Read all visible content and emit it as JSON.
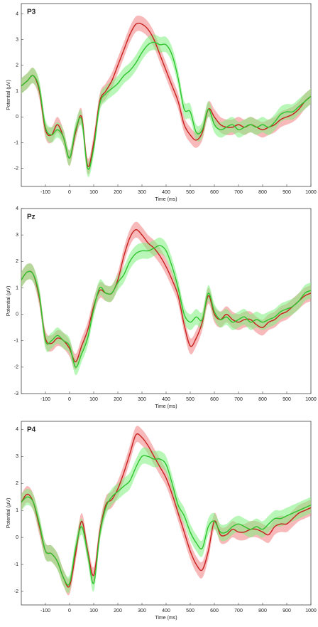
{
  "chart_data": [
    {
      "type": "line",
      "title": "P3",
      "x_label": "Time (ms)",
      "y_label": "Potential (μV)",
      "xlim": [
        -200,
        1000
      ],
      "ylim": [
        -2.7,
        4.4
      ],
      "xticks": [
        -100,
        0,
        100,
        200,
        300,
        400,
        500,
        600,
        700,
        800,
        900,
        1000
      ],
      "yticks": [
        -2,
        -1,
        0,
        1,
        2,
        3,
        4
      ],
      "x": [
        -200,
        -175,
        -150,
        -125,
        -100,
        -75,
        -50,
        -25,
        0,
        25,
        50,
        75,
        100,
        125,
        150,
        175,
        200,
        225,
        250,
        275,
        300,
        325,
        350,
        375,
        400,
        425,
        450,
        475,
        500,
        525,
        550,
        575,
        600,
        625,
        650,
        675,
        700,
        725,
        750,
        775,
        800,
        825,
        850,
        875,
        900,
        925,
        950,
        975,
        1000
      ],
      "series": [
        {
          "color": "#c8201e",
          "band_color": "#f08080",
          "error": 0.3,
          "values": [
            1.2,
            1.4,
            1.6,
            1.0,
            -0.5,
            -0.7,
            -0.3,
            -0.8,
            -1.6,
            -0.6,
            0.0,
            -1.9,
            -1.0,
            0.6,
            1.0,
            1.4,
            2.0,
            2.6,
            3.2,
            3.6,
            3.6,
            3.4,
            3.0,
            2.4,
            1.8,
            1.2,
            0.6,
            -0.3,
            -0.7,
            -0.9,
            -0.6,
            0.3,
            0.0,
            -0.3,
            -0.4,
            -0.4,
            -0.3,
            -0.4,
            -0.3,
            -0.4,
            -0.5,
            -0.4,
            -0.3,
            -0.1,
            0.0,
            0.1,
            0.3,
            0.6,
            0.8
          ]
        },
        {
          "color": "#2ec42e",
          "band_color": "#80f080",
          "error": 0.3,
          "values": [
            1.2,
            1.4,
            1.6,
            1.1,
            -0.4,
            -0.7,
            -0.5,
            -0.8,
            -1.6,
            -0.5,
            -0.1,
            -2.0,
            -1.2,
            0.5,
            0.9,
            1.1,
            1.3,
            1.6,
            1.8,
            2.1,
            2.5,
            2.8,
            2.9,
            2.8,
            2.8,
            2.4,
            1.5,
            0.3,
            0.2,
            -0.6,
            -0.5,
            0.3,
            -0.3,
            -0.5,
            -0.4,
            -0.3,
            -0.5,
            -0.4,
            -0.3,
            -0.4,
            -0.3,
            -0.4,
            -0.2,
            0.1,
            0.2,
            0.2,
            0.4,
            0.6,
            0.8
          ]
        }
      ]
    },
    {
      "type": "line",
      "title": "Pz",
      "x_label": "Time (ms)",
      "y_label": "Potential (μV)",
      "xlim": [
        -200,
        1000
      ],
      "ylim": [
        -3,
        4
      ],
      "xticks": [
        -100,
        0,
        100,
        200,
        300,
        400,
        500,
        600,
        700,
        800,
        900,
        1000
      ],
      "yticks": [
        -3,
        -2,
        -1,
        0,
        1,
        2,
        3,
        4
      ],
      "x": [
        -200,
        -175,
        -150,
        -125,
        -100,
        -75,
        -50,
        -25,
        0,
        25,
        50,
        75,
        100,
        125,
        150,
        175,
        200,
        225,
        250,
        275,
        300,
        325,
        350,
        375,
        400,
        425,
        450,
        475,
        500,
        525,
        550,
        575,
        600,
        625,
        650,
        675,
        700,
        725,
        750,
        775,
        800,
        825,
        850,
        875,
        900,
        925,
        950,
        975,
        1000
      ],
      "series": [
        {
          "color": "#c8201e",
          "band_color": "#f08080",
          "error": 0.3,
          "values": [
            1.3,
            1.6,
            1.5,
            0.6,
            -0.9,
            -1.1,
            -0.9,
            -1.0,
            -1.3,
            -1.8,
            -1.2,
            -0.6,
            0.3,
            0.9,
            0.8,
            0.8,
            1.3,
            2.2,
            2.9,
            3.2,
            3.0,
            2.7,
            2.5,
            2.2,
            1.8,
            1.3,
            0.7,
            -0.4,
            -1.2,
            -0.9,
            -0.3,
            0.7,
            0.0,
            -0.2,
            0.0,
            -0.2,
            -0.3,
            -0.2,
            -0.2,
            -0.4,
            -0.5,
            -0.3,
            -0.2,
            0.0,
            0.1,
            0.3,
            0.5,
            0.7,
            0.8
          ]
        },
        {
          "color": "#2ec42e",
          "band_color": "#80f080",
          "error": 0.3,
          "values": [
            1.3,
            1.6,
            1.5,
            0.7,
            -1.0,
            -1.0,
            -0.8,
            -1.0,
            -1.2,
            -2.0,
            -1.5,
            -0.9,
            0.2,
            1.0,
            0.8,
            0.8,
            1.2,
            1.5,
            2.0,
            2.3,
            2.4,
            2.4,
            2.5,
            2.6,
            2.4,
            1.8,
            1.0,
            0.0,
            -0.3,
            -0.1,
            -0.2,
            0.8,
            0.1,
            -0.2,
            -0.1,
            -0.3,
            -0.2,
            -0.1,
            -0.3,
            -0.2,
            -0.3,
            -0.2,
            -0.1,
            0.1,
            0.2,
            0.3,
            0.5,
            0.8,
            0.9
          ]
        }
      ]
    },
    {
      "type": "line",
      "title": "P4",
      "x_label": "Time (ms)",
      "y_label": "Potential (μV)",
      "xlim": [
        -200,
        1000
      ],
      "ylim": [
        -2.5,
        4.3
      ],
      "xticks": [
        -100,
        0,
        100,
        200,
        300,
        400,
        500,
        600,
        700,
        800,
        900,
        1000
      ],
      "yticks": [
        -2,
        -1,
        0,
        1,
        2,
        3,
        4
      ],
      "x": [
        -200,
        -175,
        -150,
        -125,
        -100,
        -75,
        -50,
        -25,
        0,
        25,
        50,
        75,
        100,
        125,
        150,
        175,
        200,
        225,
        250,
        275,
        300,
        325,
        350,
        375,
        400,
        425,
        450,
        475,
        500,
        525,
        550,
        575,
        600,
        625,
        650,
        675,
        700,
        725,
        750,
        775,
        800,
        825,
        850,
        875,
        900,
        925,
        950,
        975,
        1000
      ],
      "series": [
        {
          "color": "#c8201e",
          "band_color": "#f08080",
          "error": 0.3,
          "values": [
            1.3,
            1.6,
            1.3,
            0.4,
            -0.5,
            -0.6,
            -0.9,
            -1.5,
            -1.8,
            -0.6,
            0.6,
            -0.5,
            -1.4,
            0.2,
            1.2,
            1.4,
            1.8,
            2.4,
            3.1,
            3.8,
            3.7,
            3.4,
            3.0,
            2.6,
            2.2,
            1.6,
            0.9,
            0.2,
            -0.5,
            -1.0,
            -1.2,
            -0.5,
            0.6,
            0.1,
            0.1,
            0.3,
            0.2,
            0.2,
            0.3,
            0.3,
            0.2,
            0.1,
            0.4,
            0.5,
            0.5,
            0.7,
            0.9,
            1.0,
            1.1
          ]
        },
        {
          "color": "#2ec42e",
          "band_color": "#80f080",
          "error": 0.3,
          "values": [
            1.3,
            1.5,
            1.3,
            0.5,
            -0.5,
            -0.6,
            -0.9,
            -1.5,
            -1.7,
            -0.4,
            0.4,
            -0.6,
            -1.7,
            0.1,
            1.1,
            1.5,
            1.7,
            1.9,
            2.1,
            2.6,
            3.0,
            3.0,
            2.9,
            2.9,
            2.7,
            2.0,
            1.2,
            0.8,
            0.2,
            -0.2,
            -0.4,
            0.4,
            0.6,
            0.2,
            0.2,
            0.4,
            0.5,
            0.4,
            0.3,
            0.4,
            0.3,
            0.5,
            0.7,
            0.7,
            0.8,
            0.9,
            1.0,
            1.1,
            1.2
          ]
        }
      ]
    }
  ]
}
